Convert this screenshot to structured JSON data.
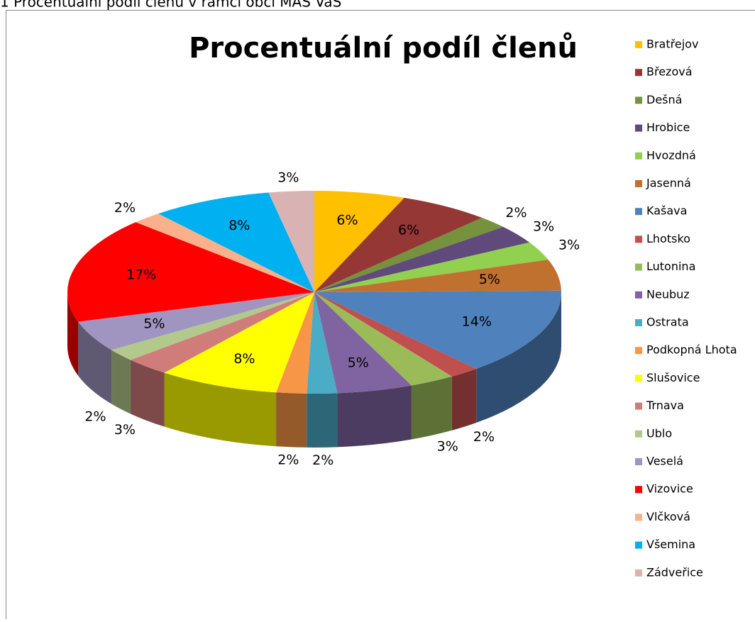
{
  "caption": "1    Procentuální podíl členů v rámci obcí MAS VaS",
  "chart_data": {
    "type": "pie3d",
    "title": "Procentuální podíl členů",
    "categories": [
      "Bratřejov",
      "Březová",
      "Dešná",
      "Hrobice",
      "Hvozdná",
      "Jasenná",
      "Kašava",
      "Lhotsko",
      "Lutonina",
      "Neubuz",
      "Ostrata",
      "Podkopná Lhota",
      "Slušovice",
      "Trnava",
      "Ublo",
      "Veselá",
      "Vizovice",
      "Vlčková",
      "Všemina",
      "Zádveřice"
    ],
    "values": [
      6,
      6,
      2,
      3,
      3,
      5,
      14,
      2,
      3,
      5,
      2,
      2,
      8,
      3,
      2,
      5,
      17,
      2,
      8,
      3
    ],
    "value_labels": [
      "6%",
      "6%",
      "2%",
      "3%",
      "3%",
      "5%",
      "14%",
      "2%",
      "3%",
      "5%",
      "2%",
      "2%",
      "8%",
      "3%",
      "2%",
      "5%",
      "17%",
      "2%",
      "8%",
      "3%"
    ],
    "colors": [
      "#ffc000",
      "#953735",
      "#76923c",
      "#604a7b",
      "#92d050",
      "#c0712f",
      "#4f81bd",
      "#c0504d",
      "#9bbb59",
      "#8064a2",
      "#4bacc6",
      "#f79646",
      "#ffff00",
      "#d07c7a",
      "#b3c98c",
      "#a094c0",
      "#ff0000",
      "#fab08a",
      "#00b0f0",
      "#d9b3b3"
    ],
    "legend": "right"
  }
}
